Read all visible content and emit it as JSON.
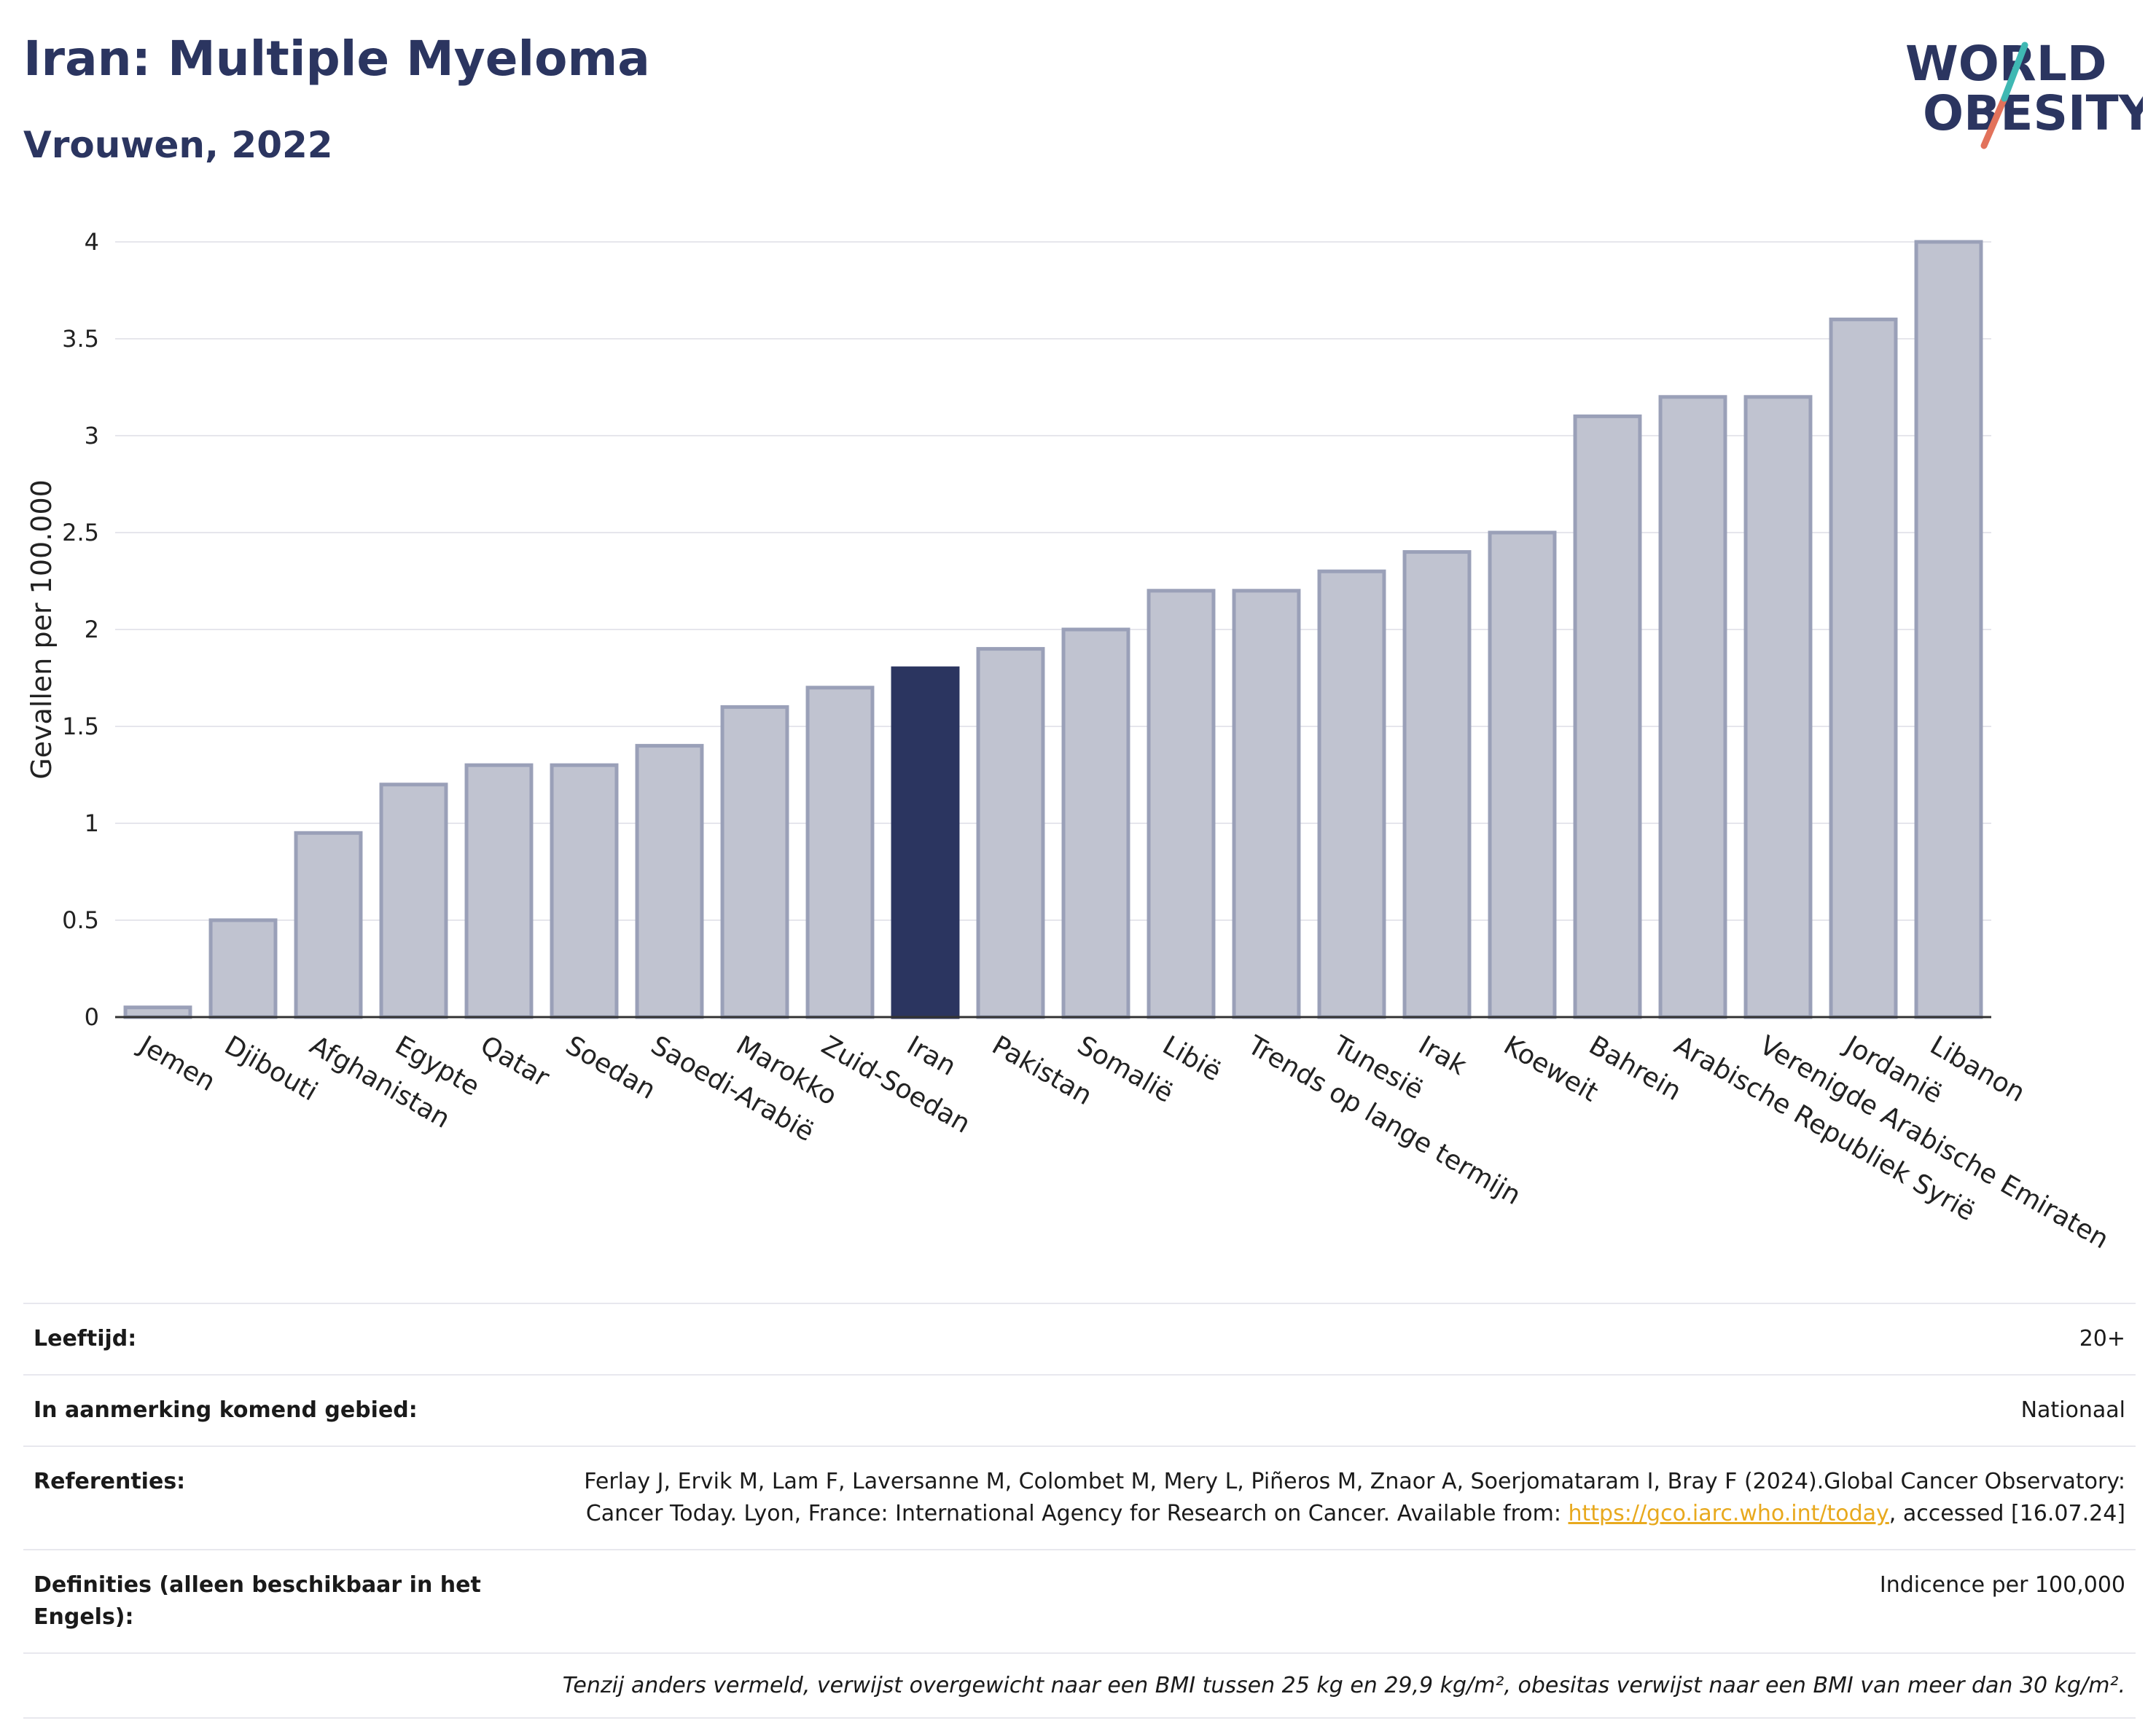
{
  "header": {
    "title": "Iran: Multiple Myeloma",
    "subtitle": "Vrouwen, 2022"
  },
  "logo": {
    "line1": "WORLD",
    "line2": "OBESITY"
  },
  "chart_data": {
    "type": "bar",
    "categories": [
      "Jemen",
      "Djibouti",
      "Afghanistan",
      "Egypte",
      "Qatar",
      "Soedan",
      "Saoedi-Arabië",
      "Marokko",
      "Zuid-Soedan",
      "Iran",
      "Pakistan",
      "Somalië",
      "Libië",
      "Trends op lange termijn",
      "Tunesië",
      "Irak",
      "Koeweit",
      "Bahrein",
      "Arabische Republiek Syrië",
      "Verenigde Arabische Emiraten",
      "Jordanië",
      "Libanon"
    ],
    "values": [
      0.05,
      0.5,
      0.95,
      1.2,
      1.3,
      1.3,
      1.4,
      1.6,
      1.7,
      1.8,
      1.9,
      2.0,
      2.2,
      2.2,
      2.3,
      2.4,
      2.5,
      3.1,
      3.2,
      3.2,
      3.6,
      4.0
    ],
    "highlight": "Iran",
    "ylabel": "Gevallen per 100.000",
    "ylim": [
      0,
      4
    ],
    "yticks": [
      0,
      0.5,
      1,
      1.5,
      2,
      2.5,
      3,
      3.5,
      4
    ],
    "ytick_labels": [
      "0",
      "0.5",
      "1",
      "1.5",
      "2",
      "2.5",
      "3",
      "3.5",
      "4"
    ],
    "grid": true,
    "colors": {
      "bar": "#c0c3d0",
      "bar_border": "#9aa0b8",
      "highlight": "#2b3560"
    }
  },
  "info": {
    "age_label": "Leeftijd:",
    "age_value": "20+",
    "area_label": "In aanmerking komend gebied:",
    "area_value": "Nationaal",
    "ref_label": "Referenties:",
    "ref_text_1": "Ferlay J, Ervik M, Lam F, Laversanne M, Colombet M, Mery L, Piñeros M, Znaor A, Soerjomataram I, Bray F (2024).Global Cancer Observatory: Cancer Today. Lyon, France: International Agency for Research on Cancer. Available from: ",
    "ref_link": "https://gco.iarc.who.int/today",
    "ref_text_2": ", accessed [16.07.24]",
    "def_label": "Definities (alleen beschikbaar in het Engels):",
    "def_value": "Indicence per 100,000",
    "note": "Tenzij anders vermeld, verwijst overgewicht naar een BMI tussen 25 kg en 29,9 kg/m², obesitas verwijst naar een BMI van meer dan 30 kg/m²."
  }
}
